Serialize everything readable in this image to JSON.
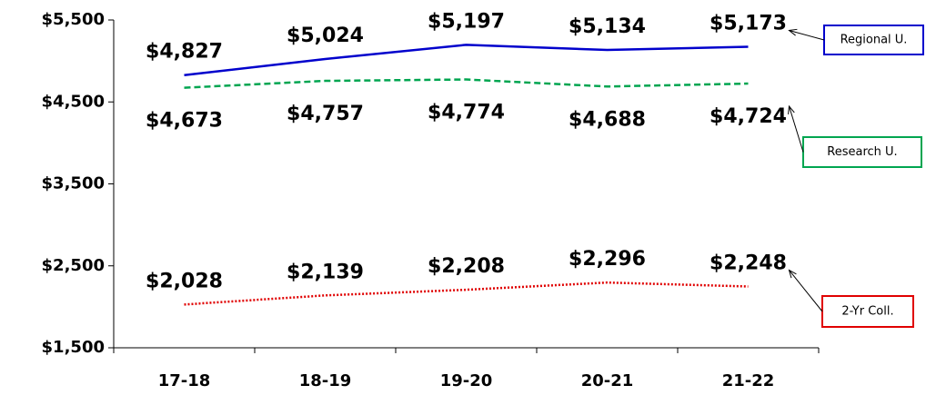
{
  "chart_data": {
    "type": "line",
    "categories": [
      "17-18",
      "18-19",
      "19-20",
      "20-21",
      "21-22"
    ],
    "series": [
      {
        "name": "Regional U.",
        "color": "#0000cc",
        "line_style": "solid",
        "values": [
          4827,
          5024,
          5197,
          5134,
          5173
        ],
        "value_labels": [
          "$4,827",
          "$5,024",
          "$5,197",
          "$5,134",
          "$5,173"
        ]
      },
      {
        "name": "Research U.",
        "color": "#00a550",
        "line_style": "dashed",
        "values": [
          4673,
          4757,
          4774,
          4688,
          4724
        ],
        "value_labels": [
          "$4,673",
          "$4,757",
          "$4,774",
          "$4,688",
          "$4,724"
        ]
      },
      {
        "name": "2-Yr Coll.",
        "color": "#e00000",
        "line_style": "dotted",
        "values": [
          2028,
          2139,
          2208,
          2296,
          2248
        ],
        "value_labels": [
          "$2,028",
          "$2,139",
          "$2,208",
          "$2,296",
          "$2,248"
        ]
      }
    ],
    "ylim": [
      1500,
      5500
    ],
    "yticks": [
      {
        "value": 1500,
        "label": "$1,500"
      },
      {
        "value": 2500,
        "label": "$2,500"
      },
      {
        "value": 3500,
        "label": "$3,500"
      },
      {
        "value": 4500,
        "label": "$4,500"
      },
      {
        "value": 5500,
        "label": "$5,500"
      }
    ],
    "grid": false
  }
}
